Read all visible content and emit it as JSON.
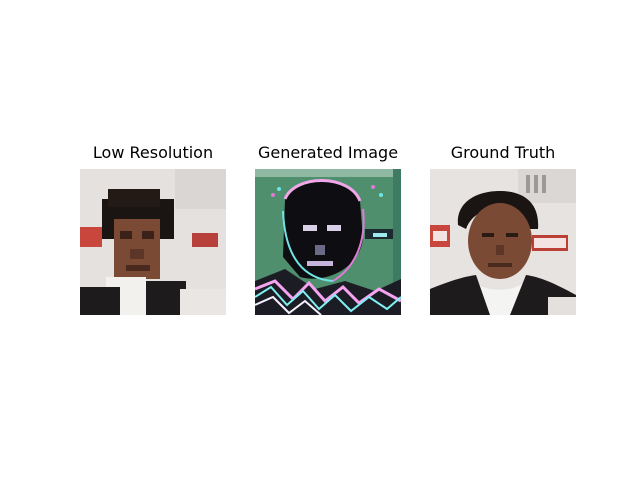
{
  "panels": [
    {
      "title": "Low Resolution",
      "image_description": "pixelated photo of a man in a dark suit and white shirt"
    },
    {
      "title": "Generated Image",
      "image_description": "noisy, color-distorted reconstruction with green background and pink/cyan artifacts"
    },
    {
      "title": "Ground Truth",
      "image_description": "sharp photo of a man in a dark suit and white shirt in front of a red-and-white step-and-repeat backdrop"
    }
  ],
  "colors": {
    "background": "#ffffff",
    "backdrop_light": "#e6e3e1",
    "backdrop_red": "#c9463c",
    "skin": "#7a4a35",
    "hair": "#1a1412",
    "suit": "#1d1b1c",
    "shirt": "#f4f4f2",
    "generated_green": "#4f8f6e",
    "generated_pink": "#e07bd6",
    "generated_cyan": "#6fe3e6"
  }
}
